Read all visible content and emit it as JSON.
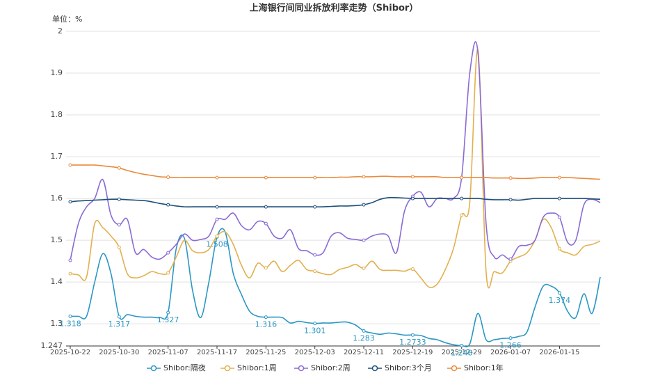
{
  "chart_data": {
    "type": "line",
    "title": "上海银行间同业拆放利率走势（Shibor）",
    "y_unit": "单位：%",
    "categories": [
      "2025-10-22",
      null,
      null,
      null,
      null,
      null,
      "2025-10-30",
      null,
      null,
      null,
      null,
      null,
      "2025-11-07",
      null,
      null,
      null,
      null,
      null,
      "2025-11-17",
      null,
      null,
      null,
      null,
      null,
      "2025-11-25",
      null,
      null,
      null,
      null,
      null,
      "2025-12-03",
      null,
      null,
      null,
      null,
      null,
      "2025-12-11",
      null,
      null,
      null,
      null,
      null,
      "2025-12-19",
      null,
      null,
      null,
      null,
      null,
      "2025-12-29",
      null,
      null,
      null,
      null,
      null,
      "2026-01-07",
      null,
      null,
      null,
      null,
      null,
      "2026-01-15",
      null,
      null,
      null,
      null,
      null
    ],
    "ylim": [
      1.247,
      2
    ],
    "yticks": [
      1.247,
      1.3,
      1.4,
      1.5,
      1.6,
      1.7,
      1.8,
      1.9,
      2
    ],
    "grid": true,
    "legend": "bottom",
    "series": [
      {
        "name": "Shibor:隔夜",
        "color": "#2b97c4",
        "values": [
          1.318,
          1.318,
          1.318,
          1.4,
          1.468,
          1.42,
          1.317,
          1.322,
          1.318,
          1.316,
          1.316,
          1.315,
          1.327,
          1.48,
          1.505,
          1.38,
          1.315,
          1.4,
          1.508,
          1.52,
          1.42,
          1.37,
          1.33,
          1.318,
          1.316,
          1.316,
          1.315,
          1.302,
          1.306,
          1.303,
          1.301,
          1.302,
          1.302,
          1.304,
          1.304,
          1.297,
          1.283,
          1.278,
          1.275,
          1.278,
          1.276,
          1.273,
          1.2733,
          1.272,
          1.265,
          1.262,
          1.255,
          1.25,
          1.248,
          1.252,
          1.325,
          1.262,
          1.262,
          1.265,
          1.266,
          1.27,
          1.28,
          1.34,
          1.39,
          1.39,
          1.374,
          1.33,
          1.315,
          1.372,
          1.325,
          1.412
        ]
      },
      {
        "name": "Shibor:1周",
        "color": "#e2b04e",
        "values": [
          1.42,
          1.417,
          1.412,
          1.54,
          1.53,
          1.51,
          1.483,
          1.42,
          1.41,
          1.415,
          1.425,
          1.42,
          1.422,
          1.46,
          1.5,
          1.475,
          1.47,
          1.478,
          1.51,
          1.52,
          1.49,
          1.44,
          1.41,
          1.445,
          1.434,
          1.45,
          1.425,
          1.44,
          1.452,
          1.43,
          1.426,
          1.42,
          1.418,
          1.43,
          1.435,
          1.442,
          1.433,
          1.45,
          1.43,
          1.428,
          1.428,
          1.426,
          1.431,
          1.41,
          1.388,
          1.395,
          1.43,
          1.48,
          1.56,
          1.59,
          1.955,
          1.425,
          1.425,
          1.422,
          1.45,
          1.46,
          1.47,
          1.5,
          1.55,
          1.53,
          1.48,
          1.47,
          1.465,
          1.485,
          1.49,
          1.498
        ]
      },
      {
        "name": "Shibor:2周",
        "color": "#8a6bd4",
        "values": [
          1.452,
          1.54,
          1.58,
          1.6,
          1.645,
          1.56,
          1.537,
          1.55,
          1.47,
          1.478,
          1.46,
          1.455,
          1.47,
          1.49,
          1.515,
          1.5,
          1.502,
          1.51,
          1.55,
          1.55,
          1.565,
          1.535,
          1.525,
          1.545,
          1.54,
          1.51,
          1.505,
          1.525,
          1.48,
          1.475,
          1.465,
          1.47,
          1.51,
          1.518,
          1.505,
          1.502,
          1.5,
          1.51,
          1.515,
          1.51,
          1.47,
          1.57,
          1.605,
          1.615,
          1.58,
          1.6,
          1.6,
          1.6,
          1.65,
          1.9,
          1.95,
          1.54,
          1.46,
          1.465,
          1.455,
          1.485,
          1.488,
          1.5,
          1.555,
          1.565,
          1.555,
          1.495,
          1.5,
          1.585,
          1.598,
          1.59
        ]
      },
      {
        "name": "Shibor:3个月",
        "color": "#1f4f7a",
        "values": [
          1.592,
          1.594,
          1.595,
          1.596,
          1.597,
          1.598,
          1.598,
          1.597,
          1.596,
          1.595,
          1.592,
          1.588,
          1.585,
          1.582,
          1.58,
          1.58,
          1.58,
          1.58,
          1.58,
          1.58,
          1.58,
          1.58,
          1.58,
          1.58,
          1.58,
          1.58,
          1.58,
          1.58,
          1.58,
          1.58,
          1.58,
          1.58,
          1.581,
          1.582,
          1.582,
          1.583,
          1.585,
          1.59,
          1.598,
          1.602,
          1.602,
          1.601,
          1.6,
          1.6,
          1.6,
          1.6,
          1.6,
          1.6,
          1.6,
          1.6,
          1.6,
          1.598,
          1.597,
          1.597,
          1.597,
          1.596,
          1.598,
          1.6,
          1.6,
          1.6,
          1.6,
          1.6,
          1.6,
          1.6,
          1.599,
          1.598
        ]
      },
      {
        "name": "Shibor:1年",
        "color": "#e88a3c",
        "values": [
          1.68,
          1.68,
          1.68,
          1.68,
          1.678,
          1.676,
          1.673,
          1.667,
          1.662,
          1.658,
          1.655,
          1.652,
          1.651,
          1.65,
          1.65,
          1.65,
          1.65,
          1.65,
          1.65,
          1.65,
          1.65,
          1.65,
          1.65,
          1.65,
          1.65,
          1.65,
          1.65,
          1.65,
          1.65,
          1.65,
          1.65,
          1.65,
          1.65,
          1.651,
          1.651,
          1.652,
          1.652,
          1.652,
          1.653,
          1.653,
          1.652,
          1.652,
          1.652,
          1.652,
          1.652,
          1.652,
          1.65,
          1.65,
          1.65,
          1.65,
          1.65,
          1.65,
          1.649,
          1.649,
          1.649,
          1.648,
          1.648,
          1.649,
          1.65,
          1.65,
          1.65,
          1.65,
          1.649,
          1.648,
          1.647,
          1.646
        ]
      }
    ]
  }
}
